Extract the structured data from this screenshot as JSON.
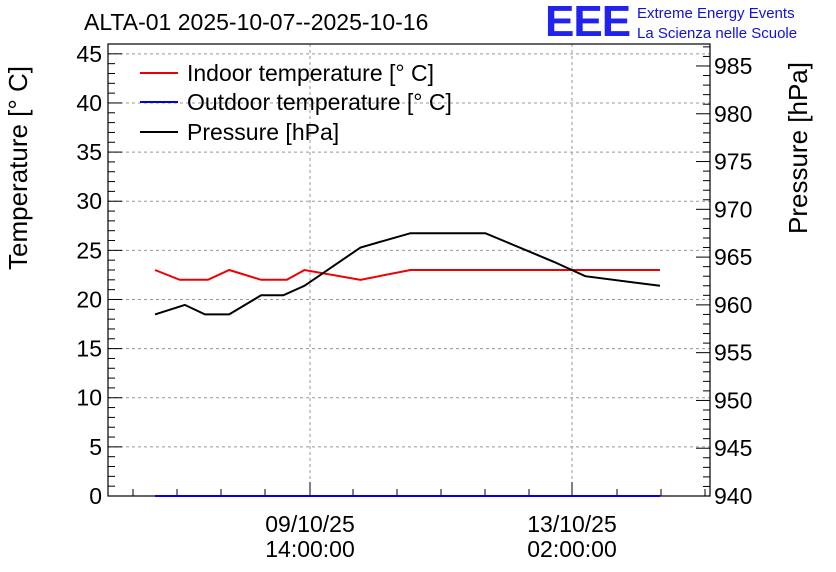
{
  "chart_data": {
    "type": "line",
    "title": "ALTA-01 2025-10-07--2025-10-16",
    "ylabel_left": "Temperature [° C]",
    "ylabel_right": "Pressure [hPa]",
    "xlabel": "",
    "ylim_left": [
      0,
      46
    ],
    "ylim_right": [
      940,
      987.3
    ],
    "yticks_left": [
      "0",
      "5",
      "10",
      "15",
      "20",
      "25",
      "30",
      "35",
      "40",
      "45"
    ],
    "yticks_right": [
      "940",
      "945",
      "950",
      "955",
      "960",
      "965",
      "970",
      "975",
      "980",
      "985"
    ],
    "xtick_labels": [
      {
        "date": "09/10/25",
        "time": "14:00:00"
      },
      {
        "date": "13/10/25",
        "time": "02:00:00"
      }
    ],
    "grid": true,
    "legend_position": "top-left",
    "series": [
      {
        "name": "Indoor temperature [° C]",
        "color": "#ee0000",
        "axis": "left",
        "x": [
          0.0,
          0.049,
          0.105,
          0.147,
          0.21,
          0.261,
          0.296,
          0.407,
          0.506,
          0.654,
          0.852,
          1.0
        ],
        "values": [
          23.0,
          22.0,
          22.0,
          23.0,
          22.0,
          22.0,
          23.0,
          22.0,
          23.0,
          23.0,
          23.0,
          23.0
        ]
      },
      {
        "name": "Outdoor temperature [° C]",
        "color": "#0000ee",
        "axis": "left",
        "x": [
          0.0,
          1.0
        ],
        "values": [
          0.0,
          0.0
        ]
      },
      {
        "name": "Pressure [hPa]",
        "color": "#000000",
        "axis": "right",
        "x": [
          0.0,
          0.059,
          0.099,
          0.147,
          0.21,
          0.254,
          0.296,
          0.407,
          0.506,
          0.654,
          0.79,
          0.852,
          1.0
        ],
        "values": [
          959.0,
          960.0,
          959.0,
          959.0,
          961.0,
          961.0,
          962.0,
          966.0,
          967.5,
          967.5,
          964.5,
          963.0,
          962.0
        ]
      }
    ]
  },
  "logo": {
    "mark": "EEE",
    "line1": "Extreme Energy Events",
    "line2": "La Scienza nelle Scuole"
  }
}
